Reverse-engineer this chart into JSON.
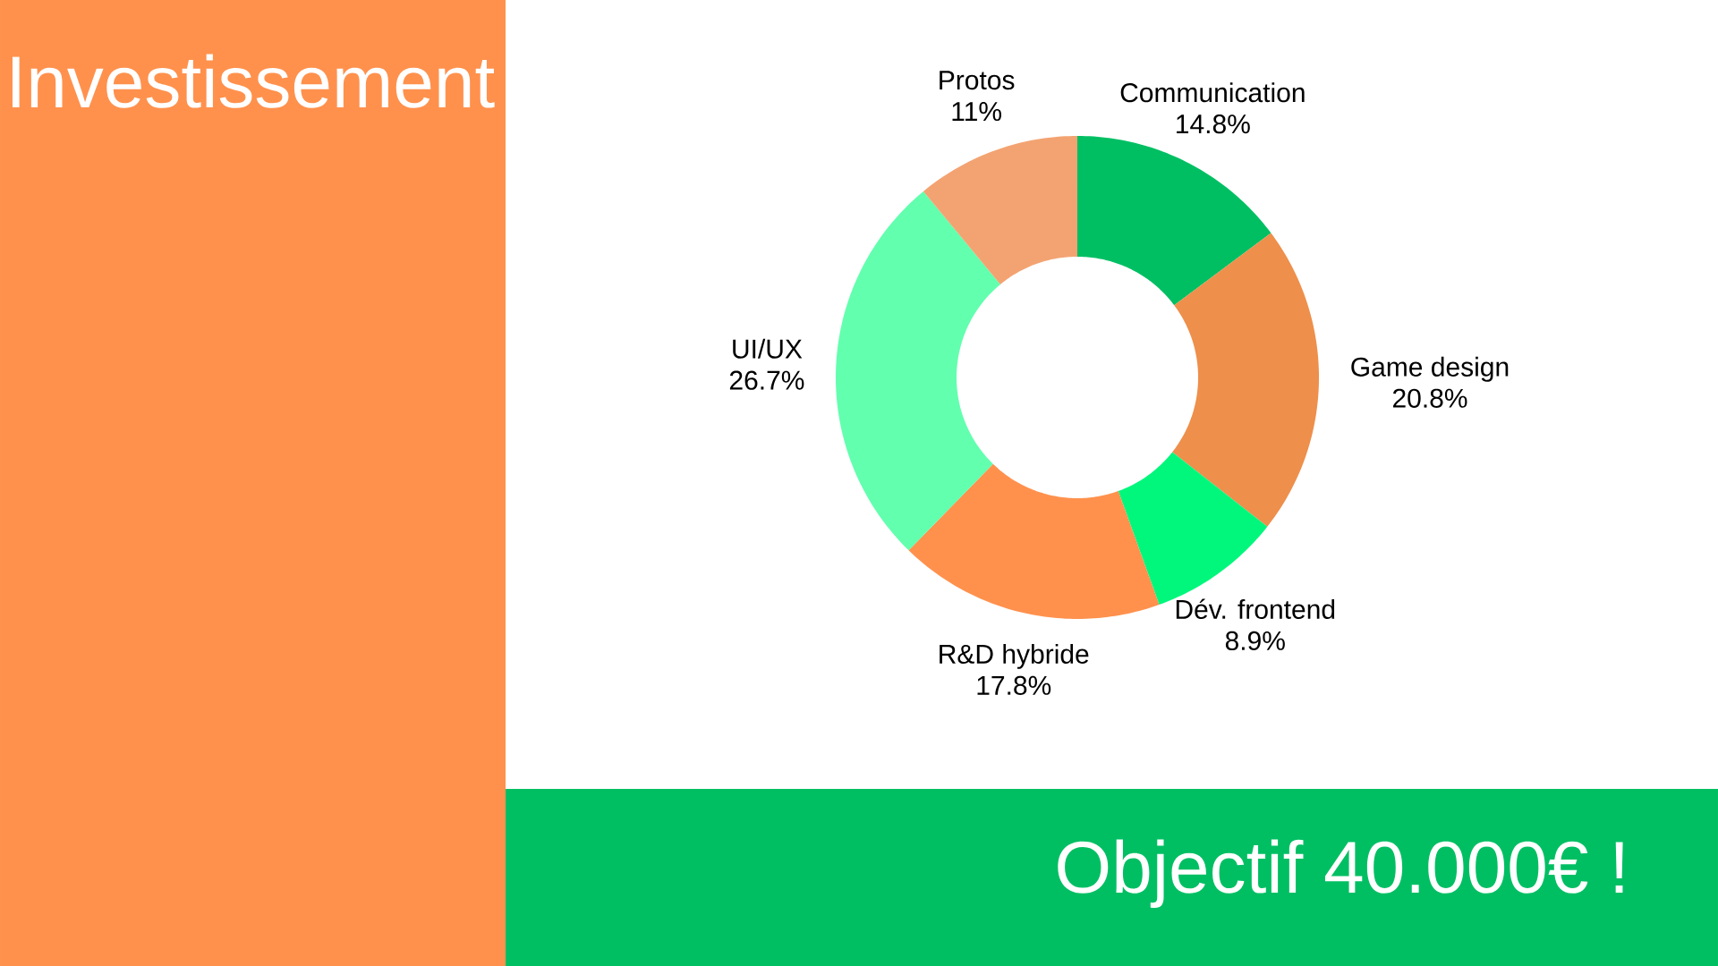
{
  "chart_data": {
    "type": "donut",
    "title": "Investissement",
    "annotations": [
      "Objectif 40.000€ !"
    ],
    "categories": [
      "Communication",
      "Game design",
      "Dév. frontend",
      "R&D hybride",
      "UI/UX",
      "Protos"
    ],
    "values": [
      14.8,
      20.8,
      8.9,
      17.8,
      26.7,
      11
    ],
    "value_labels": [
      "14.8%",
      "20.8%",
      "8.9%",
      "17.8%",
      "26.7%",
      "11%"
    ],
    "colors": [
      "#00bf63",
      "#ee8f4b",
      "#00f77c",
      "#ff914d",
      "#62ffae",
      "#f3a372"
    ]
  }
}
